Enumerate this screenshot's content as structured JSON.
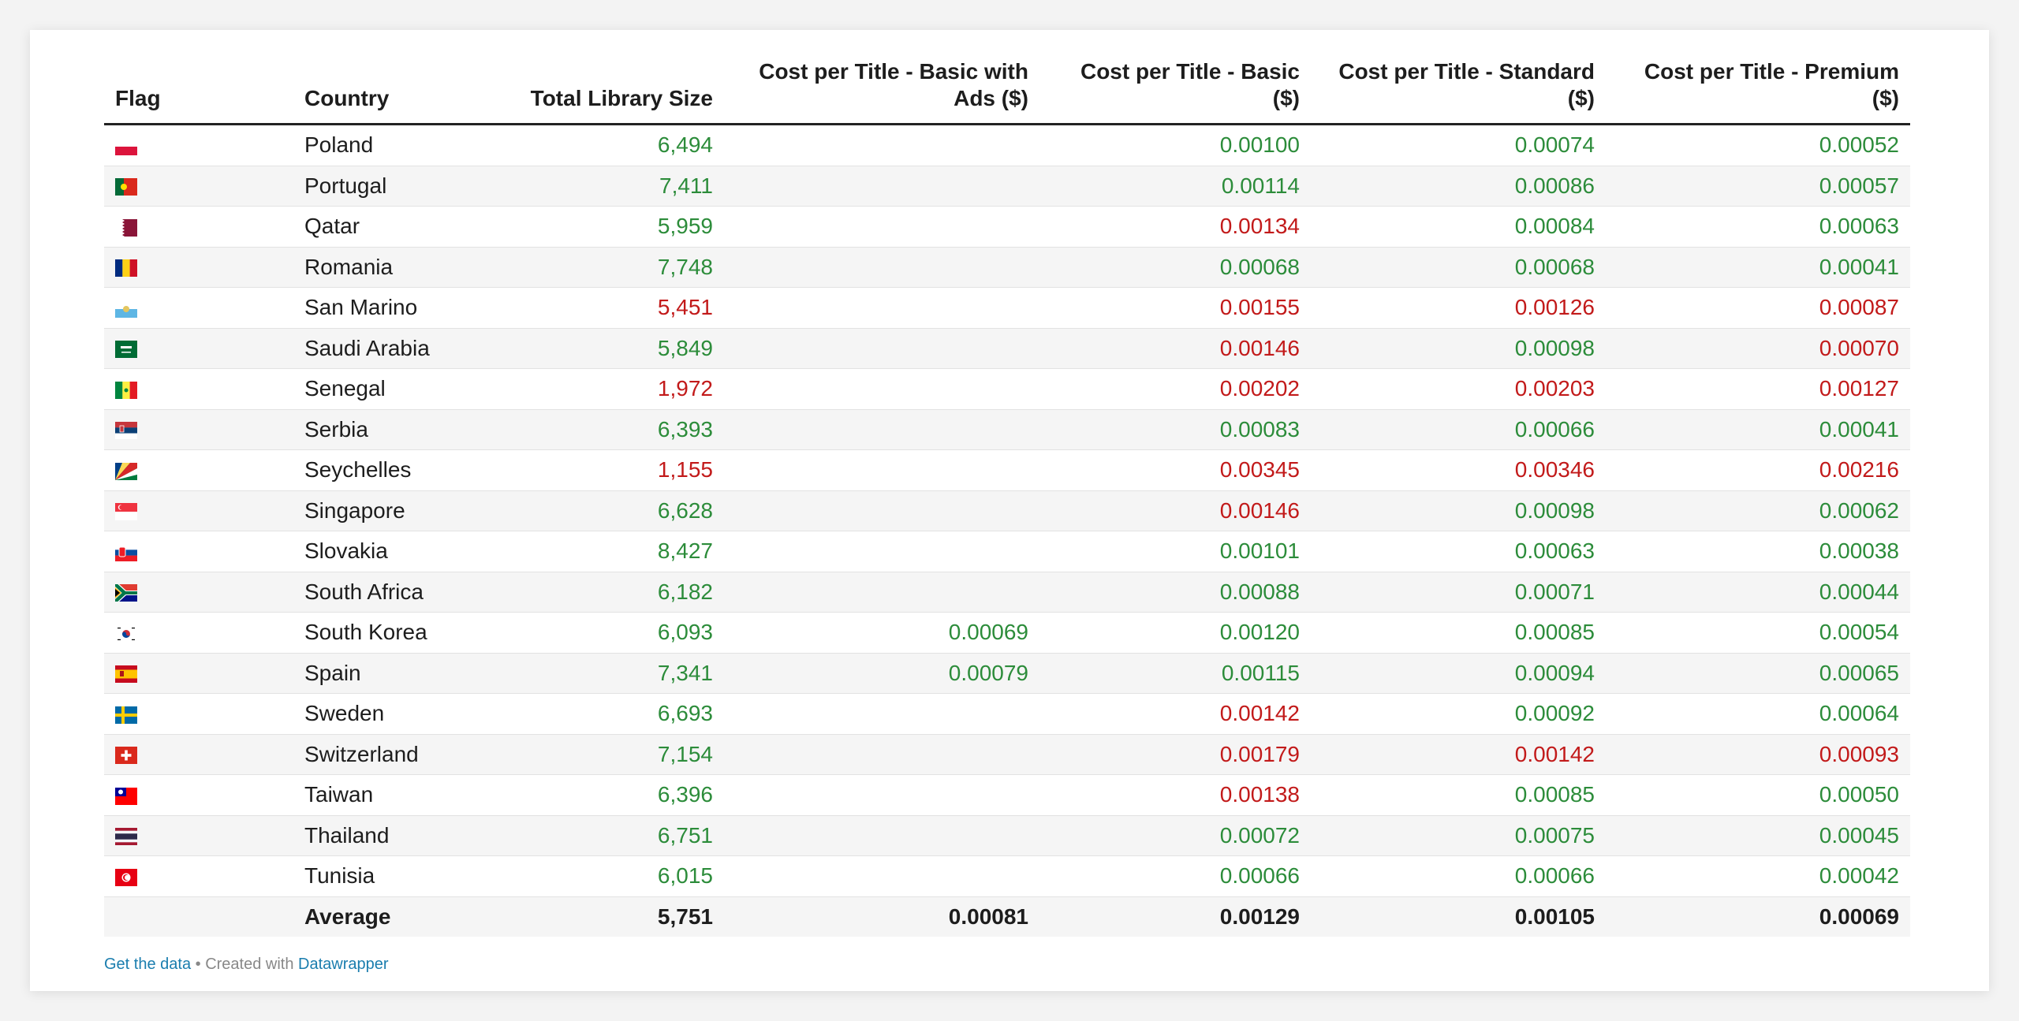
{
  "colors": {
    "good": "#2c8c3a",
    "bad": "#c21a1a",
    "text": "#1d1d1d",
    "link": "#1a7dae"
  },
  "chart_data": {
    "type": "table",
    "columns": [
      "Flag",
      "Country",
      "Total Library Size",
      "Cost per Title - Basic with Ads ($)",
      "Cost per Title - Basic ($)",
      "Cost per Title - Standard ($)",
      "Cost per Title - Premium ($)"
    ],
    "rows": [
      {
        "flag": "poland-flag-icon",
        "country": "Poland",
        "size": "6,494",
        "ads": "",
        "basic": "0.00100",
        "standard": "0.00074",
        "premium": "0.00052",
        "c": [
          "good",
          "",
          "good",
          "good",
          "good"
        ]
      },
      {
        "flag": "portugal-flag-icon",
        "country": "Portugal",
        "size": "7,411",
        "ads": "",
        "basic": "0.00114",
        "standard": "0.00086",
        "premium": "0.00057",
        "c": [
          "good",
          "",
          "good",
          "good",
          "good"
        ]
      },
      {
        "flag": "qatar-flag-icon",
        "country": "Qatar",
        "size": "5,959",
        "ads": "",
        "basic": "0.00134",
        "standard": "0.00084",
        "premium": "0.00063",
        "c": [
          "good",
          "",
          "bad",
          "good",
          "good"
        ]
      },
      {
        "flag": "romania-flag-icon",
        "country": "Romania",
        "size": "7,748",
        "ads": "",
        "basic": "0.00068",
        "standard": "0.00068",
        "premium": "0.00041",
        "c": [
          "good",
          "",
          "good",
          "good",
          "good"
        ]
      },
      {
        "flag": "san-marino-flag-icon",
        "country": "San Marino",
        "size": "5,451",
        "ads": "",
        "basic": "0.00155",
        "standard": "0.00126",
        "premium": "0.00087",
        "c": [
          "bad",
          "",
          "bad",
          "bad",
          "bad"
        ]
      },
      {
        "flag": "saudi-arabia-flag-icon",
        "country": "Saudi Arabia",
        "size": "5,849",
        "ads": "",
        "basic": "0.00146",
        "standard": "0.00098",
        "premium": "0.00070",
        "c": [
          "good",
          "",
          "bad",
          "good",
          "bad"
        ]
      },
      {
        "flag": "senegal-flag-icon",
        "country": "Senegal",
        "size": "1,972",
        "ads": "",
        "basic": "0.00202",
        "standard": "0.00203",
        "premium": "0.00127",
        "c": [
          "bad",
          "",
          "bad",
          "bad",
          "bad"
        ]
      },
      {
        "flag": "serbia-flag-icon",
        "country": "Serbia",
        "size": "6,393",
        "ads": "",
        "basic": "0.00083",
        "standard": "0.00066",
        "premium": "0.00041",
        "c": [
          "good",
          "",
          "good",
          "good",
          "good"
        ]
      },
      {
        "flag": "seychelles-flag-icon",
        "country": "Seychelles",
        "size": "1,155",
        "ads": "",
        "basic": "0.00345",
        "standard": "0.00346",
        "premium": "0.00216",
        "c": [
          "bad",
          "",
          "bad",
          "bad",
          "bad"
        ]
      },
      {
        "flag": "singapore-flag-icon",
        "country": "Singapore",
        "size": "6,628",
        "ads": "",
        "basic": "0.00146",
        "standard": "0.00098",
        "premium": "0.00062",
        "c": [
          "good",
          "",
          "bad",
          "good",
          "good"
        ]
      },
      {
        "flag": "slovakia-flag-icon",
        "country": "Slovakia",
        "size": "8,427",
        "ads": "",
        "basic": "0.00101",
        "standard": "0.00063",
        "premium": "0.00038",
        "c": [
          "good",
          "",
          "good",
          "good",
          "good"
        ]
      },
      {
        "flag": "south-africa-flag-icon",
        "country": "South Africa",
        "size": "6,182",
        "ads": "",
        "basic": "0.00088",
        "standard": "0.00071",
        "premium": "0.00044",
        "c": [
          "good",
          "",
          "good",
          "good",
          "good"
        ]
      },
      {
        "flag": "south-korea-flag-icon",
        "country": "South Korea",
        "size": "6,093",
        "ads": "0.00069",
        "basic": "0.00120",
        "standard": "0.00085",
        "premium": "0.00054",
        "c": [
          "good",
          "good",
          "good",
          "good",
          "good"
        ]
      },
      {
        "flag": "spain-flag-icon",
        "country": "Spain",
        "size": "7,341",
        "ads": "0.00079",
        "basic": "0.00115",
        "standard": "0.00094",
        "premium": "0.00065",
        "c": [
          "good",
          "good",
          "good",
          "good",
          "good"
        ]
      },
      {
        "flag": "sweden-flag-icon",
        "country": "Sweden",
        "size": "6,693",
        "ads": "",
        "basic": "0.00142",
        "standard": "0.00092",
        "premium": "0.00064",
        "c": [
          "good",
          "",
          "bad",
          "good",
          "good"
        ]
      },
      {
        "flag": "switzerland-flag-icon",
        "country": "Switzerland",
        "size": "7,154",
        "ads": "",
        "basic": "0.00179",
        "standard": "0.00142",
        "premium": "0.00093",
        "c": [
          "good",
          "",
          "bad",
          "bad",
          "bad"
        ]
      },
      {
        "flag": "taiwan-flag-icon",
        "country": "Taiwan",
        "size": "6,396",
        "ads": "",
        "basic": "0.00138",
        "standard": "0.00085",
        "premium": "0.00050",
        "c": [
          "good",
          "",
          "bad",
          "good",
          "good"
        ]
      },
      {
        "flag": "thailand-flag-icon",
        "country": "Thailand",
        "size": "6,751",
        "ads": "",
        "basic": "0.00072",
        "standard": "0.00075",
        "premium": "0.00045",
        "c": [
          "good",
          "",
          "good",
          "good",
          "good"
        ]
      },
      {
        "flag": "tunisia-flag-icon",
        "country": "Tunisia",
        "size": "6,015",
        "ads": "",
        "basic": "0.00066",
        "standard": "0.00066",
        "premium": "0.00042",
        "c": [
          "good",
          "",
          "good",
          "good",
          "good"
        ]
      }
    ],
    "average": {
      "label": "Average",
      "size": "5,751",
      "ads": "0.00081",
      "basic": "0.00129",
      "standard": "0.00105",
      "premium": "0.00069"
    }
  },
  "footer": {
    "get_data": "Get the data",
    "sep": " • Created with ",
    "tool": "Datawrapper"
  }
}
